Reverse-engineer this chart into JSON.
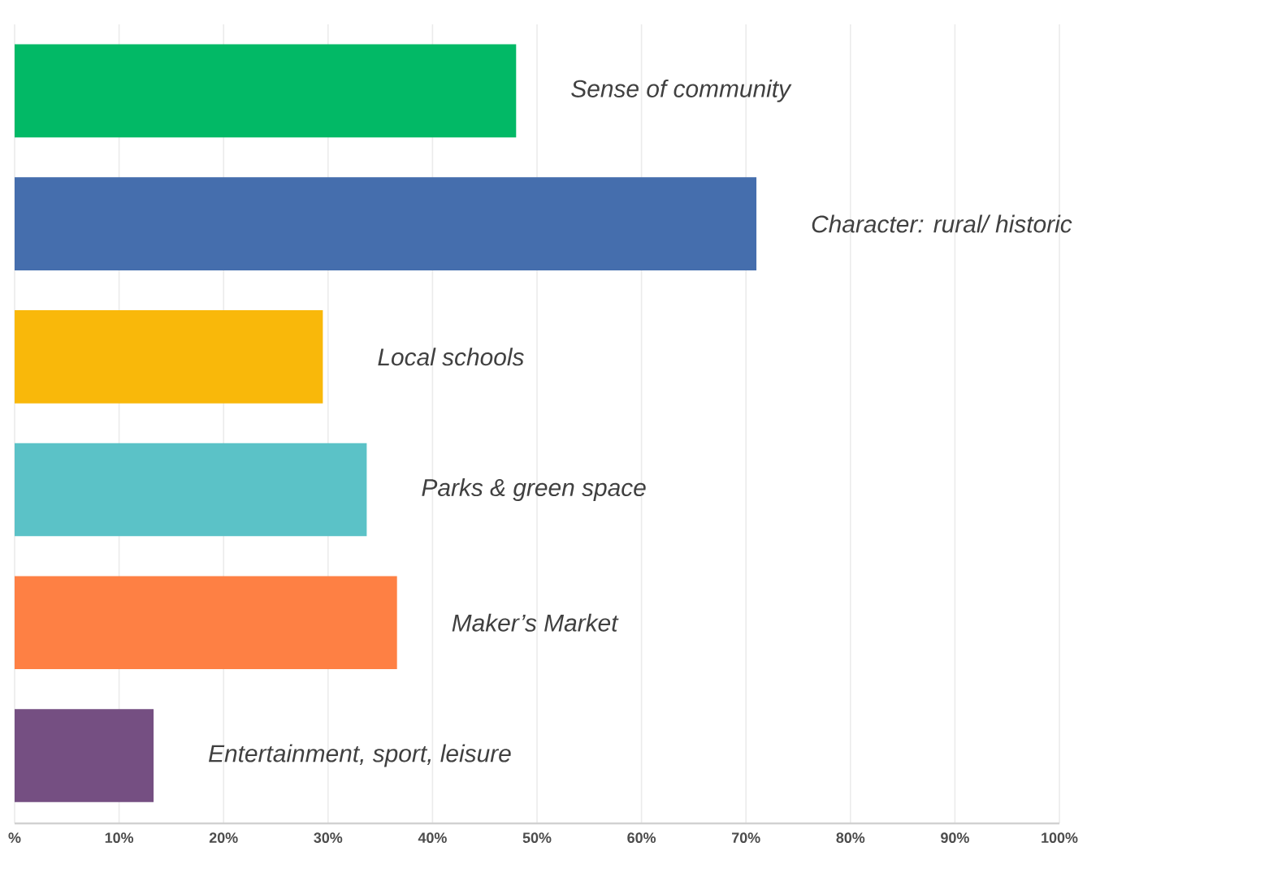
{
  "chart_data": {
    "type": "bar",
    "orientation": "horizontal",
    "categories": [
      "Sense of community",
      "Character: rural/ historic",
      "Local schools",
      "Parks & green space",
      "Maker’s Market",
      "Entertainment, sport, leisure"
    ],
    "values": [
      48,
      71,
      29.5,
      33.7,
      36.6,
      13.3
    ],
    "colors": [
      "#02b966",
      "#456ead",
      "#f9b80a",
      "#5bc2c7",
      "#fe8044",
      "#754f82"
    ],
    "xlim": [
      0,
      100
    ],
    "xticks": [
      {
        "value": 0,
        "label": "%"
      },
      {
        "value": 10,
        "label": "10%"
      },
      {
        "value": 20,
        "label": "20%"
      },
      {
        "value": 30,
        "label": "30%"
      },
      {
        "value": 40,
        "label": "40%"
      },
      {
        "value": 50,
        "label": "50%"
      },
      {
        "value": 60,
        "label": "60%"
      },
      {
        "value": 70,
        "label": "70%"
      },
      {
        "value": 80,
        "label": "80%"
      },
      {
        "value": 90,
        "label": "90%"
      },
      {
        "value": 100,
        "label": "100%"
      }
    ],
    "grid": "x"
  }
}
